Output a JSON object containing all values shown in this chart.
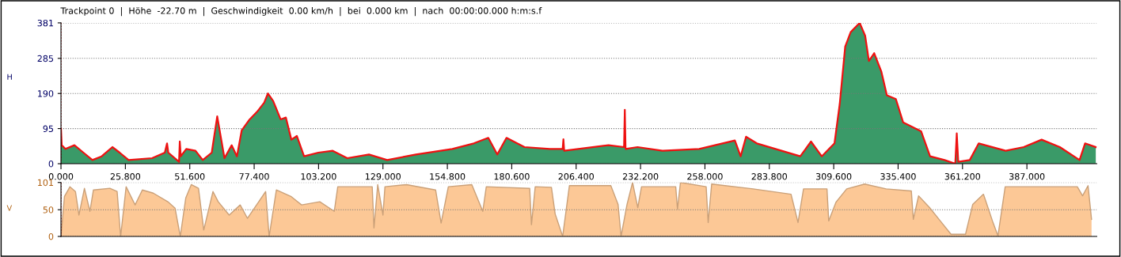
{
  "chart_data": [
    {
      "type": "area",
      "ylabel": "H",
      "annotations": [
        "Trackpoint 0  |  Höhe  -22.70 m  |  Geschwindigkeit  0.00 km/h  |  bei  0.000 km  |  nach  00:00:00.000 h:m:s.f"
      ],
      "xlim": [
        0,
        415
      ],
      "ylim": [
        0,
        381
      ],
      "yticks": [
        0,
        95,
        190,
        285,
        381
      ],
      "xticks": [
        {
          "value": 0,
          "label": "0.000"
        },
        {
          "value": 25.8,
          "label": "25.800"
        },
        {
          "value": 51.6,
          "label": "51.600"
        },
        {
          "value": 77.4,
          "label": "77.400"
        },
        {
          "value": 103.2,
          "label": "103.200"
        },
        {
          "value": 129,
          "label": "129.000"
        },
        {
          "value": 154.8,
          "label": "154.800"
        },
        {
          "value": 180.6,
          "label": "180.600"
        },
        {
          "value": 206.4,
          "label": "206.400"
        },
        {
          "value": 232.2,
          "label": "232.200"
        },
        {
          "value": 258,
          "label": "258.000"
        },
        {
          "value": 283.8,
          "label": "283.800"
        },
        {
          "value": 309.6,
          "label": "309.600"
        },
        {
          "value": 335.4,
          "label": "335.400"
        },
        {
          "value": 361.2,
          "label": "361.200"
        },
        {
          "value": 387,
          "label": "387.000"
        }
      ],
      "grid": "y",
      "ref_lines": [
        {
          "axis": "x",
          "value": 0,
          "color": "#cc0000",
          "line_style": "dotted"
        }
      ],
      "series": [
        {
          "color": "#3a9a68",
          "x": [
            0,
            0.3,
            1.8,
            5.4,
            9,
            12.6,
            16.3,
            20.6,
            23.5,
            27.1,
            36.5,
            41.6,
            42.5,
            43,
            47.3,
            47.6,
            48,
            50.2,
            53.9,
            56.8,
            60.4,
            62.6,
            65.5,
            68.4,
            70.5,
            72.4,
            75.6,
            78.5,
            81.4,
            82.9,
            85,
            88,
            90.1,
            92.3,
            94.5,
            97.4,
            103.1,
            108.9,
            114.7,
            123.4,
            130.7,
            142.2,
            156.8,
            165.4,
            171.2,
            174.8,
            178.5,
            185.7,
            195.9,
            201,
            201.3,
            201.6,
            219.4,
            225.6,
            225.9,
            226.2,
            231,
            241,
            255.7,
            270,
            272.3,
            274.5,
            278.8,
            296.2,
            300.5,
            304.8,
            309.9,
            312,
            314.2,
            316.4,
            320,
            322.2,
            323.7,
            325.8,
            328.7,
            330.9,
            334.5,
            337.4,
            344.6,
            348.2,
            354,
            358.3,
            358.9,
            359.5,
            364.1,
            367.7,
            378.5,
            385.7,
            392.9,
            400.2,
            408.1,
            410.3,
            414.6
          ],
          "values": [
            95,
            50,
            40,
            50,
            30,
            10,
            20,
            45,
            30,
            10,
            15,
            30,
            55,
            30,
            5,
            60,
            20,
            40,
            35,
            10,
            30,
            128,
            15,
            50,
            20,
            90,
            120,
            140,
            165,
            190,
            170,
            120,
            125,
            65,
            75,
            20,
            30,
            35,
            15,
            25,
            10,
            25,
            40,
            55,
            70,
            25,
            70,
            45,
            40,
            40,
            66,
            35,
            50,
            45,
            146,
            40,
            45,
            35,
            40,
            63,
            20,
            73,
            55,
            20,
            60,
            20,
            55,
            161,
            317,
            356,
            381,
            346,
            278,
            299,
            249,
            185,
            175,
            112,
            88,
            20,
            10,
            0,
            82,
            5,
            10,
            55,
            35,
            45,
            65,
            45,
            10,
            55,
            45
          ]
        }
      ]
    },
    {
      "type": "area",
      "ylabel": "V",
      "tick_labels": "y",
      "xlim": [
        0,
        415
      ],
      "ylim": [
        0,
        101
      ],
      "yticks": [
        0,
        50,
        101
      ],
      "grid": "y",
      "ref_lines": [
        {
          "axis": "x",
          "value": 0,
          "color": "#cc0000",
          "line_style": "dotted"
        }
      ],
      "series": [
        {
          "color": "#fcc896",
          "x": [
            0,
            1.4,
            3.6,
            5.8,
            7.2,
            9.4,
            11.6,
            13,
            19.6,
            22.5,
            23.9,
            26.1,
            29.7,
            32.6,
            37,
            42.8,
            45.7,
            47.8,
            50,
            52.2,
            55.1,
            57.2,
            60.9,
            63,
            67.4,
            71.8,
            74.7,
            77.5,
            82,
            83.4,
            86.3,
            92.1,
            96.4,
            103.7,
            109.5,
            110.9,
            124.7,
            125.4,
            126.9,
            129,
            129.8,
            138.5,
            150.1,
            152.3,
            155.2,
            164.6,
            169,
            170.4,
            187.8,
            188.5,
            190,
            196.5,
            198,
            201,
            203.7,
            220.3,
            223.2,
            224.4,
            226.8,
            229,
            231.1,
            232.6,
            246.3,
            247,
            248.2,
            258.5,
            259.3,
            260.7,
            277.3,
            292.5,
            295.3,
            297.5,
            306.9,
            307.6,
            310.5,
            314.8,
            322,
            330.6,
            340.7,
            341.5,
            343.6,
            348,
            352.3,
            356.6,
            362.4,
            365.3,
            369.6,
            373.2,
            375.4,
            378.3,
            407.2,
            409.3,
            411.5,
            412.9
          ],
          "values": [
            0,
            75,
            93,
            84,
            40,
            90,
            47,
            87,
            90,
            84,
            0,
            93,
            59,
            87,
            81,
            65,
            53,
            0,
            72,
            97,
            90,
            12,
            84,
            65,
            40,
            59,
            34,
            53,
            84,
            0,
            87,
            75,
            59,
            65,
            47,
            93,
            93,
            16,
            97,
            40,
            93,
            97,
            87,
            25,
            93,
            97,
            47,
            93,
            90,
            22,
            93,
            92,
            42,
            0,
            95,
            95,
            60,
            0,
            60,
            101,
            54,
            93,
            93,
            51,
            101,
            93,
            26,
            98,
            89,
            79,
            26,
            89,
            89,
            29,
            64,
            89,
            98,
            89,
            85,
            32,
            76,
            54,
            29,
            4,
            4,
            60,
            79,
            29,
            1,
            93,
            93,
            76,
            95,
            32
          ]
        }
      ]
    }
  ]
}
